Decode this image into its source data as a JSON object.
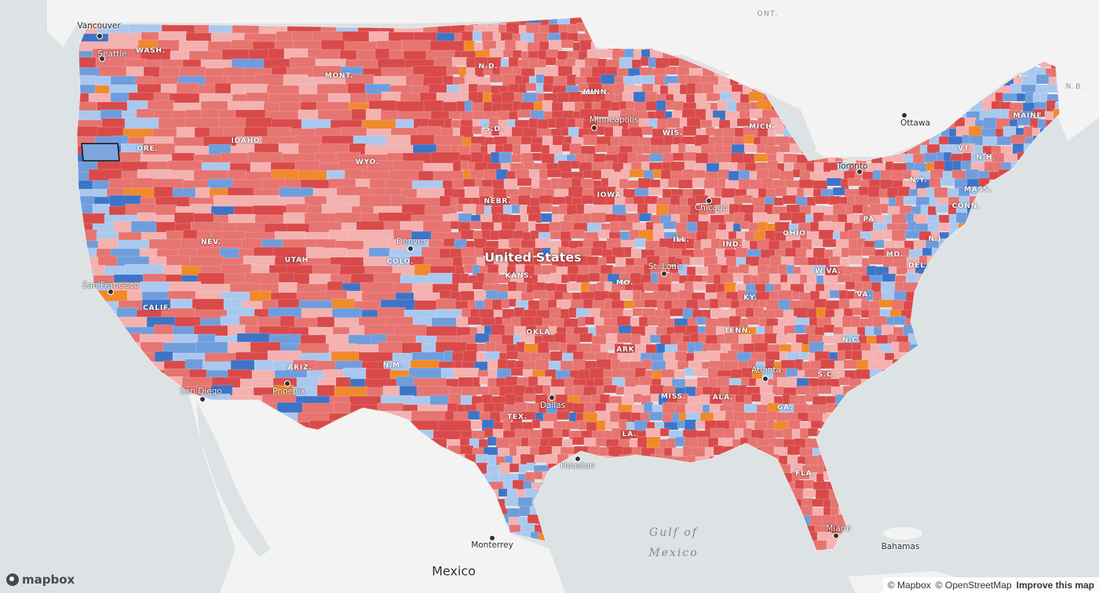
{
  "colors": {
    "water": "#dde2e4",
    "land": "#f3f3f3",
    "rep_strong": "#d94a4a",
    "rep_medium": "#e67470",
    "rep_lean": "#f3b1b0",
    "dem_lean": "#aac8ee",
    "dem_medium": "#6f9ddc",
    "dem_strong": "#3e74c8",
    "swing": "#f08a2a"
  },
  "country_label": "United States",
  "neighbor_labels": {
    "mexico": "Mexico",
    "ontario": "ONT.",
    "new_brunswick": "N.B.",
    "bahamas": "Bahamas",
    "gulf_line1": "Gulf of",
    "gulf_line2": "Mexico"
  },
  "state_labels": [
    "WASH.",
    "ORE.",
    "IDAHO",
    "MONT.",
    "WYO.",
    "N.D.",
    "S.D.",
    "NEBR.",
    "NEV.",
    "UTAH",
    "COLO.",
    "KANS.",
    "CALIF.",
    "ARIZ.",
    "N.M.",
    "OKLA.",
    "TEX.",
    "MINN.",
    "IOWA",
    "MO.",
    "ARK.",
    "LA.",
    "WIS.",
    "ILL.",
    "MICH.",
    "IND.",
    "OHIO",
    "KY.",
    "TENN.",
    "MISS.",
    "ALA.",
    "GA.",
    "FLA.",
    "S.C.",
    "N.C.",
    "VA.",
    "W.VA.",
    "PA.",
    "N.Y.",
    "MAINE",
    "VT.",
    "N.H.",
    "MASS.",
    "CONN.",
    "N.J.",
    "MD.",
    "DEL."
  ],
  "cities": [
    "Vancouver",
    "Seattle",
    "San Francisco",
    "San Diego",
    "Phoenix",
    "Denver",
    "Dallas",
    "Houston",
    "Minneapolis",
    "Chicago",
    "St. Louis",
    "Atlanta",
    "Miami",
    "Toronto",
    "Ottawa",
    "Monterrey"
  ],
  "attribution": {
    "mapbox": "© Mapbox",
    "osm": "© OpenStreetMap",
    "improve": "Improve this map"
  },
  "logo_text": "mapbox"
}
